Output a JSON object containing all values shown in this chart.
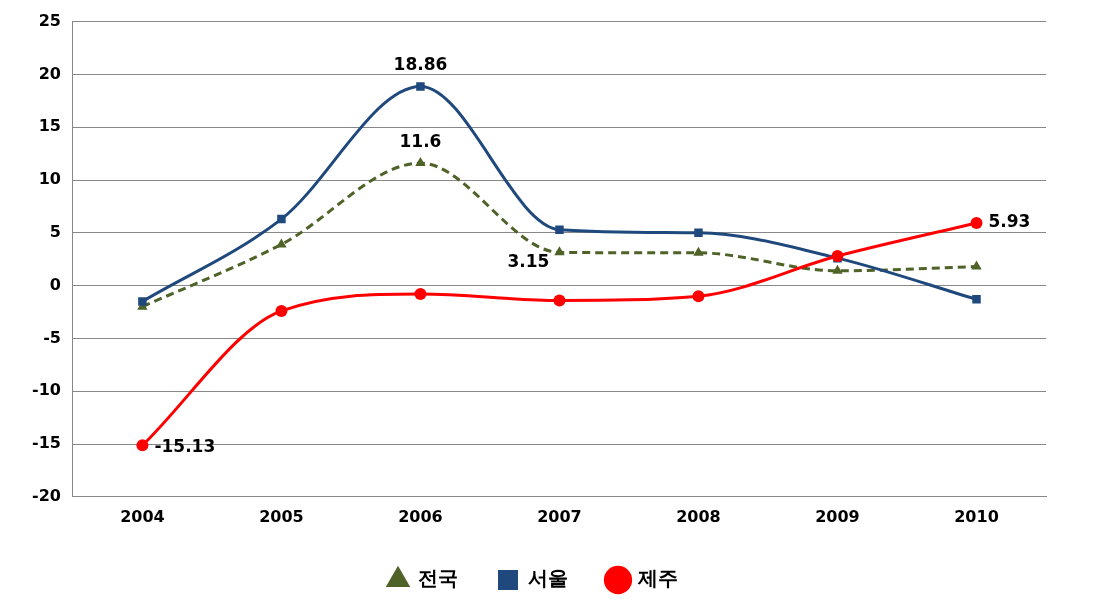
{
  "chart_data": {
    "type": "line",
    "categories": [
      "2004",
      "2005",
      "2006",
      "2007",
      "2008",
      "2009",
      "2010"
    ],
    "series": [
      {
        "name": "전국",
        "color": "#4f6228",
        "values": [
          -2.0,
          3.9,
          11.6,
          3.15,
          3.1,
          1.4,
          1.8
        ],
        "marker": "triangle",
        "line_style": "dashed",
        "value_labels": [
          null,
          null,
          "11.6",
          "3.15",
          null,
          null,
          null
        ]
      },
      {
        "name": "서울",
        "color": "#1f497d",
        "values": [
          -1.5,
          6.3,
          18.86,
          5.3,
          5.0,
          2.6,
          -1.3
        ],
        "marker": "square",
        "line_style": "solid",
        "value_labels": [
          null,
          null,
          "18.86",
          null,
          null,
          null,
          null
        ]
      },
      {
        "name": "제주",
        "color": "#ff0000",
        "values": [
          -15.13,
          -2.4,
          -0.8,
          -1.4,
          -1.0,
          2.8,
          5.93
        ],
        "marker": "circle",
        "line_style": "solid",
        "value_labels": [
          "-15.13",
          null,
          null,
          null,
          null,
          null,
          "5.93"
        ]
      }
    ],
    "ylim": [
      -20,
      25
    ],
    "yticks": [
      -20,
      -15,
      -10,
      -5,
      0,
      5,
      10,
      15,
      20,
      25
    ],
    "grid": "y",
    "legend": "bottom"
  }
}
